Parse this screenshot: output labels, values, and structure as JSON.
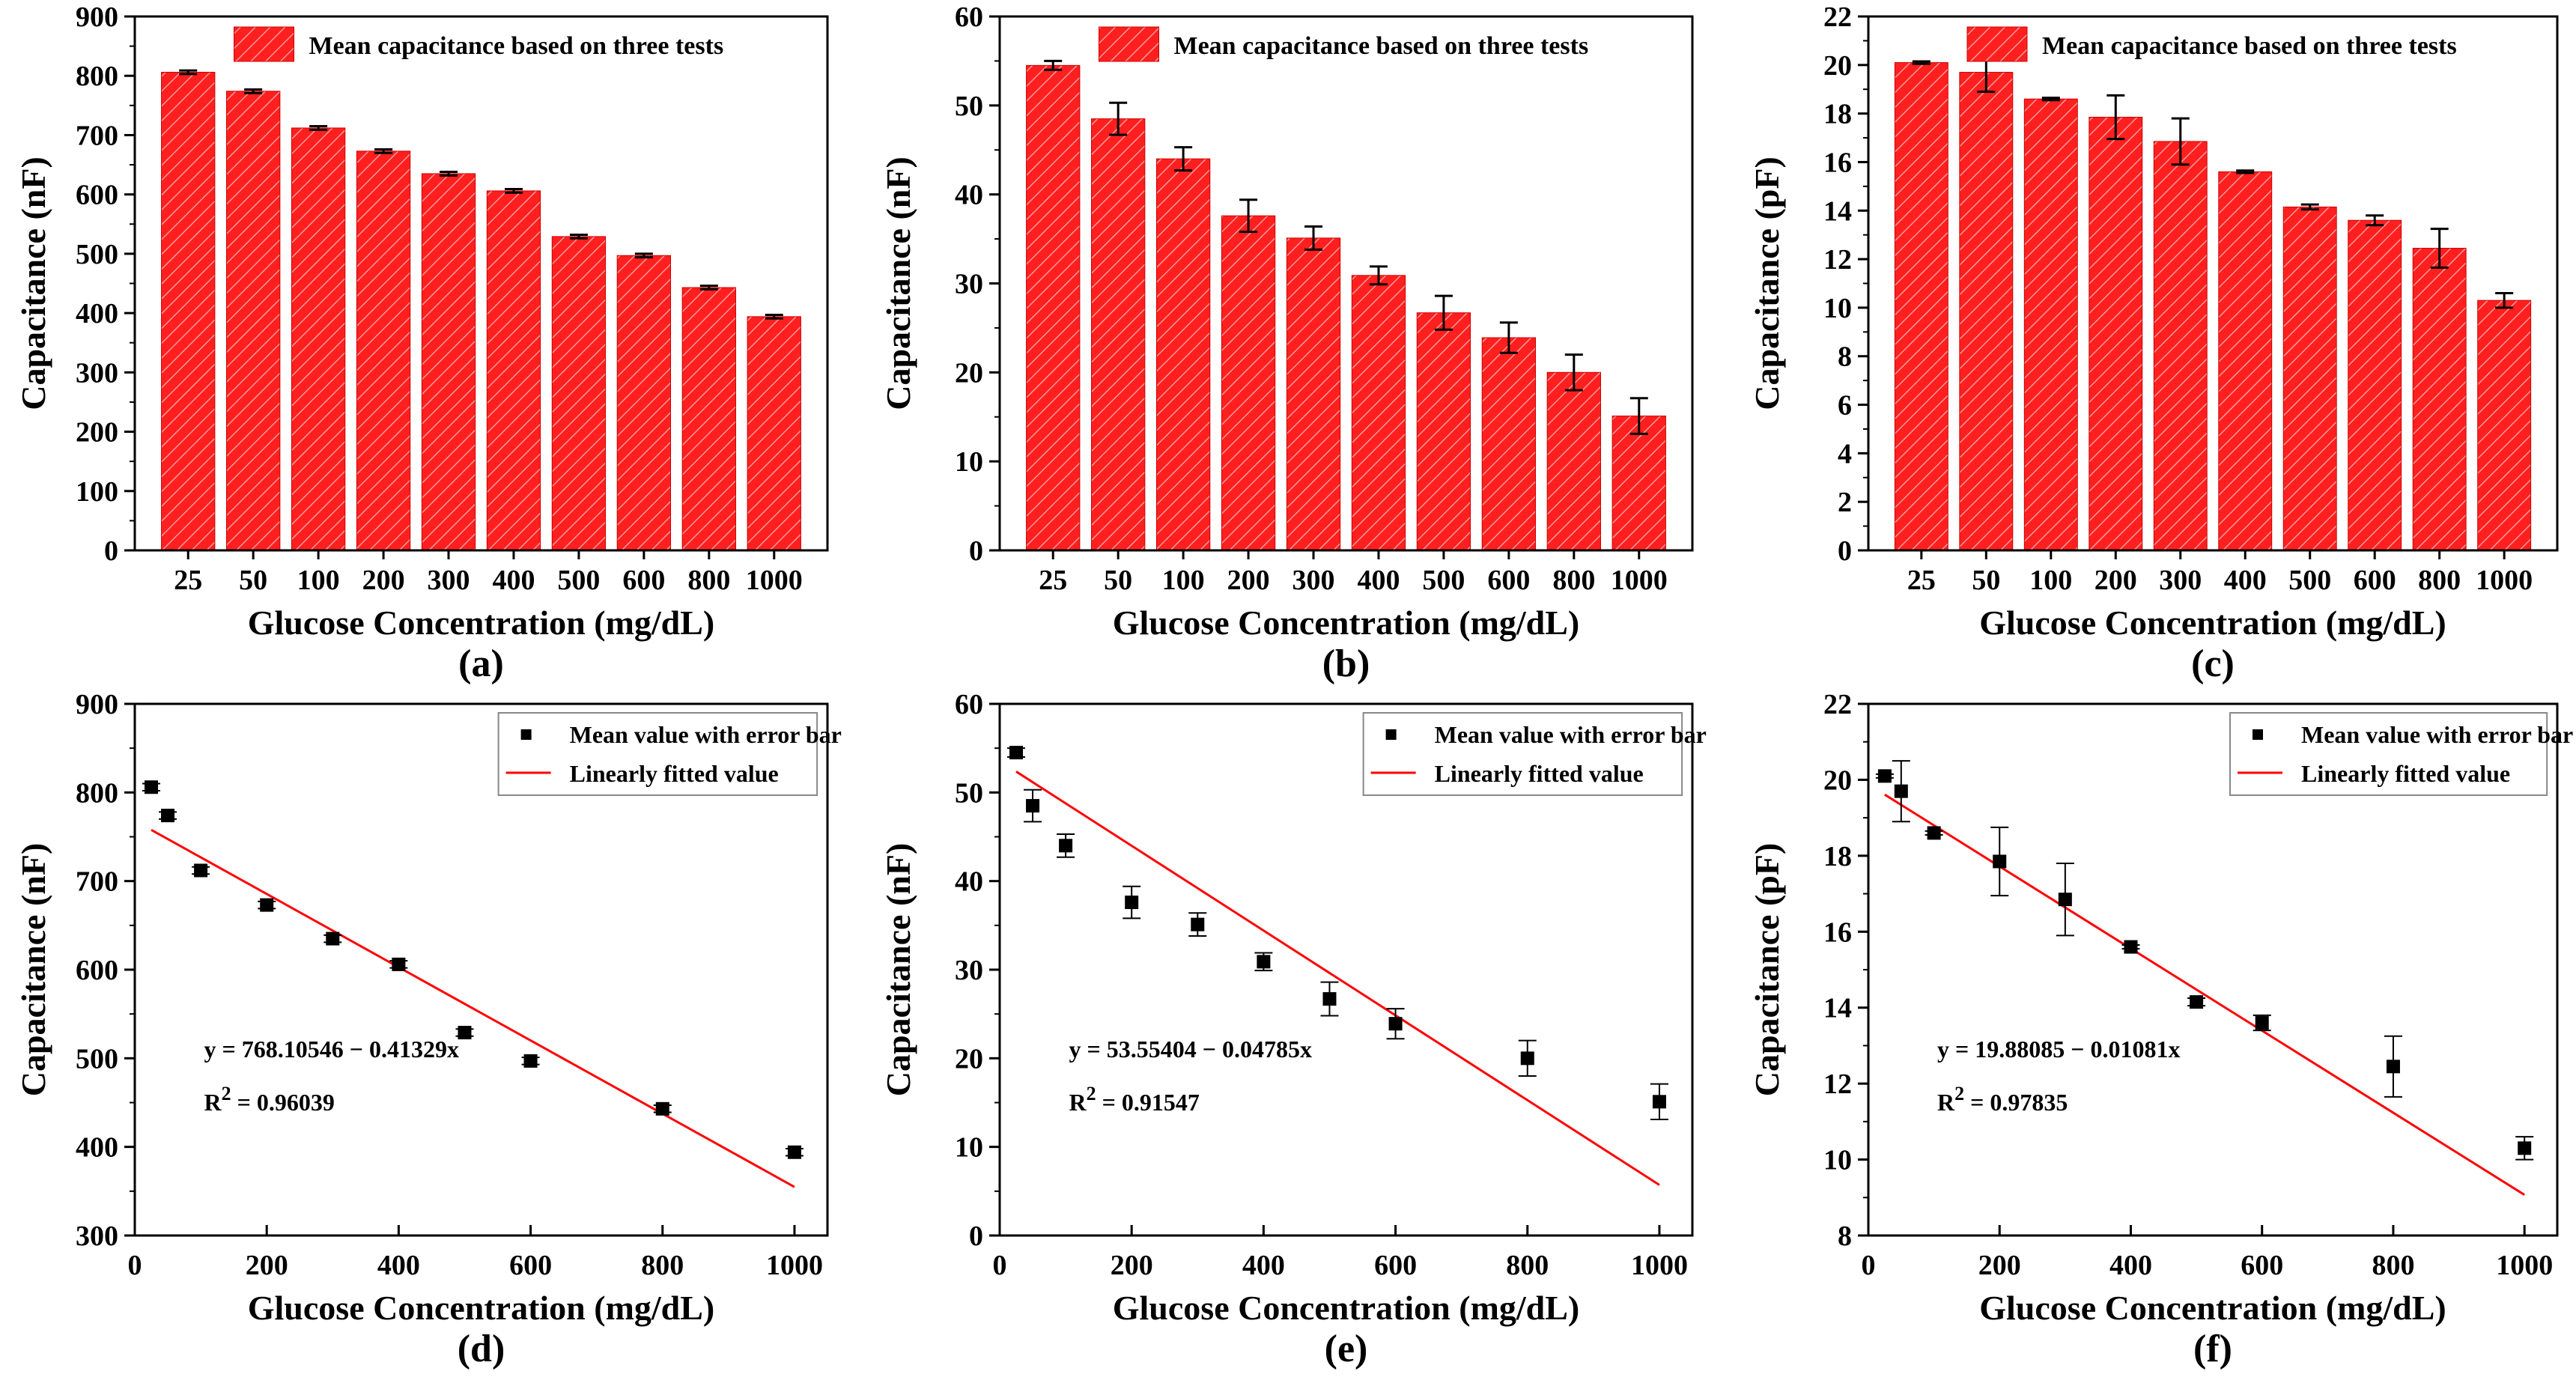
{
  "colors": {
    "bar": "#ff1f1f",
    "bar_hatch": "#ffb3b3",
    "fit": "#ff0000",
    "point": "#000000"
  },
  "chart_data": [
    {
      "panel": "(a)",
      "type": "bar",
      "categories": [
        "25",
        "50",
        "100",
        "200",
        "300",
        "400",
        "500",
        "600",
        "800",
        "1000"
      ],
      "values": [
        806,
        774,
        712,
        673,
        635,
        606,
        529,
        497,
        443,
        394
      ],
      "errors": [
        3,
        3,
        3,
        3,
        3,
        3,
        3,
        3,
        3,
        3
      ],
      "xlabel": "Glucose Concentration (mg/dL)",
      "ylabel": "Capacitance (nF)",
      "ylim": [
        0,
        900
      ],
      "yticks": [
        0,
        100,
        200,
        300,
        400,
        500,
        600,
        700,
        800,
        900
      ],
      "legend": "Mean capacitance based on three tests"
    },
    {
      "panel": "(b)",
      "type": "bar",
      "categories": [
        "25",
        "50",
        "100",
        "200",
        "300",
        "400",
        "500",
        "600",
        "800",
        "1000"
      ],
      "values": [
        54.5,
        48.5,
        44.0,
        37.6,
        35.1,
        30.9,
        26.7,
        23.9,
        20.0,
        15.1
      ],
      "errors": [
        0.5,
        1.8,
        1.3,
        1.8,
        1.3,
        1.0,
        1.9,
        1.7,
        2.0,
        2.0
      ],
      "xlabel": "Glucose Concentration (mg/dL)",
      "ylabel": "Capacitance (nF)",
      "ylim": [
        0,
        60
      ],
      "yticks": [
        0,
        10,
        20,
        30,
        40,
        50,
        60
      ],
      "legend": "Mean capacitance based on three tests"
    },
    {
      "panel": "(c)",
      "type": "bar",
      "categories": [
        "25",
        "50",
        "100",
        "200",
        "300",
        "400",
        "500",
        "600",
        "800",
        "1000"
      ],
      "values": [
        20.1,
        19.7,
        18.6,
        17.85,
        16.85,
        15.6,
        14.15,
        13.6,
        12.45,
        10.3
      ],
      "errors": [
        0.05,
        0.8,
        0.05,
        0.9,
        0.95,
        0.05,
        0.1,
        0.2,
        0.8,
        0.3
      ],
      "xlabel": "Glucose Concentration (mg/dL)",
      "ylabel": "Capacitance (pF)",
      "ylim": [
        0,
        22
      ],
      "yticks": [
        0,
        2,
        4,
        6,
        8,
        10,
        12,
        14,
        16,
        18,
        20,
        22
      ],
      "legend": "Mean capacitance based on three tests"
    },
    {
      "panel": "(d)",
      "type": "scatter",
      "x": [
        25,
        50,
        100,
        200,
        300,
        400,
        500,
        600,
        800,
        1000
      ],
      "y": [
        806,
        774,
        712,
        673,
        635,
        606,
        529,
        497,
        443,
        394
      ],
      "errors": [
        4,
        4,
        4,
        4,
        4,
        4,
        4,
        4,
        4,
        4
      ],
      "fit": {
        "intercept": 768.10546,
        "slope": -0.41329,
        "x_range": [
          25,
          1000
        ]
      },
      "xlabel": "Glucose Concentration (mg/dL)",
      "ylabel": "Capacitance (nF)",
      "xlim": [
        0,
        1050
      ],
      "xticks": [
        0,
        200,
        400,
        600,
        800,
        1000
      ],
      "ylim": [
        300,
        900
      ],
      "yticks": [
        300,
        400,
        500,
        600,
        700,
        800,
        900
      ],
      "legend": [
        "Mean value with error bar",
        "Linearly fitted value"
      ],
      "equation": "y = 768.10546 − 0.41329x",
      "r2_label": "R",
      "r2_sup": "2",
      "r2_value": " = 0.96039"
    },
    {
      "panel": "(e)",
      "type": "scatter",
      "x": [
        25,
        50,
        100,
        200,
        300,
        400,
        500,
        600,
        800,
        1000
      ],
      "y": [
        54.5,
        48.5,
        44.0,
        37.6,
        35.1,
        30.9,
        26.7,
        23.9,
        20.0,
        15.1
      ],
      "errors": [
        0.5,
        1.8,
        1.3,
        1.8,
        1.3,
        1.0,
        1.9,
        1.7,
        2.0,
        2.0
      ],
      "fit": {
        "intercept": 53.55404,
        "slope": -0.04785,
        "x_range": [
          25,
          1000
        ]
      },
      "xlabel": "Glucose Concentration (mg/dL)",
      "ylabel": "Capacitance (nF)",
      "xlim": [
        0,
        1050
      ],
      "xticks": [
        0,
        200,
        400,
        600,
        800,
        1000
      ],
      "ylim": [
        0,
        60
      ],
      "yticks": [
        0,
        10,
        20,
        30,
        40,
        50,
        60
      ],
      "legend": [
        "Mean value with error bar",
        "Linearly fitted value"
      ],
      "equation": "y = 53.55404 − 0.04785x",
      "r2_label": "R",
      "r2_sup": "2",
      "r2_value": " = 0.91547"
    },
    {
      "panel": "(f)",
      "type": "scatter",
      "x": [
        25,
        50,
        100,
        200,
        300,
        400,
        500,
        600,
        800,
        1000
      ],
      "y": [
        20.1,
        19.7,
        18.6,
        17.85,
        16.85,
        15.6,
        14.15,
        13.6,
        12.45,
        10.3
      ],
      "errors": [
        0.05,
        0.8,
        0.05,
        0.9,
        0.95,
        0.05,
        0.1,
        0.2,
        0.8,
        0.3
      ],
      "fit": {
        "intercept": 19.88085,
        "slope": -0.01081,
        "x_range": [
          25,
          1000
        ]
      },
      "xlabel": "Glucose Concentration (mg/dL)",
      "ylabel": "Capacitance (pF)",
      "xlim": [
        0,
        1050
      ],
      "xticks": [
        0,
        200,
        400,
        600,
        800,
        1000
      ],
      "ylim": [
        8,
        22
      ],
      "yticks": [
        8,
        10,
        12,
        14,
        16,
        18,
        20,
        22
      ],
      "legend": [
        "Mean value with error bar",
        "Linearly fitted value"
      ],
      "equation": "y = 19.88085 − 0.01081x",
      "r2_label": "R",
      "r2_sup": "2",
      "r2_value": " = 0.97835"
    }
  ]
}
